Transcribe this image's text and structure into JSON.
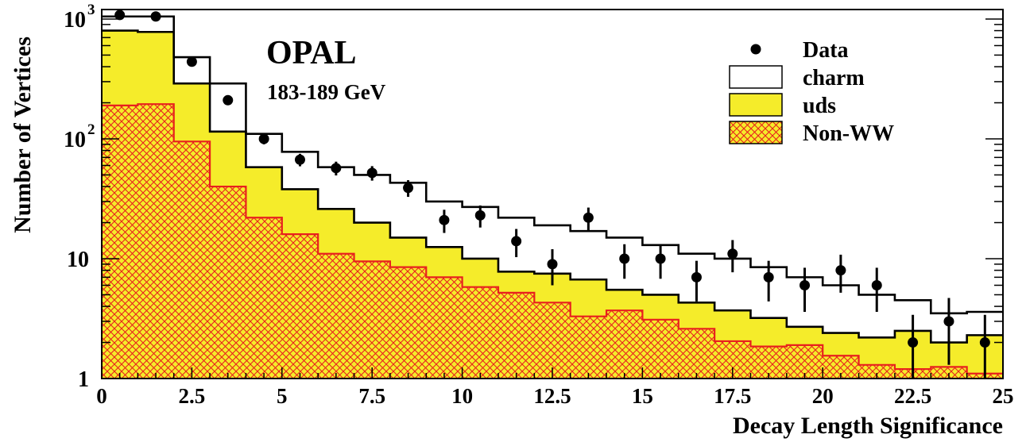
{
  "chart_data": {
    "type": "histogram",
    "title": "OPAL",
    "subtitle": "183-189 GeV",
    "xlabel": "Decay Length Significance",
    "ylabel": "Number of Vertices",
    "xlim": [
      0,
      25
    ],
    "ylim": [
      1,
      1200
    ],
    "yscale": "log",
    "bin_width": 1,
    "x_ticks": [
      {
        "value": 0,
        "label": "0"
      },
      {
        "value": 2.5,
        "label": "2.5"
      },
      {
        "value": 5,
        "label": "5"
      },
      {
        "value": 7.5,
        "label": "7.5"
      },
      {
        "value": 10,
        "label": "10"
      },
      {
        "value": 12.5,
        "label": "12.5"
      },
      {
        "value": 15,
        "label": "15"
      },
      {
        "value": 17.5,
        "label": "17.5"
      },
      {
        "value": 20,
        "label": "20"
      },
      {
        "value": 22.5,
        "label": "22.5"
      },
      {
        "value": 25,
        "label": "25"
      }
    ],
    "y_ticks": [
      {
        "value": 1,
        "base": "1",
        "exp": ""
      },
      {
        "value": 10,
        "base": "10",
        "exp": ""
      },
      {
        "value": 100,
        "base": "10",
        "exp": "2"
      },
      {
        "value": 1000,
        "base": "10",
        "exp": "3"
      }
    ],
    "legend_position": "top-right",
    "legend": [
      {
        "label": "Data",
        "style": "marker"
      },
      {
        "label": "charm",
        "style": "open-box"
      },
      {
        "label": "uds",
        "style": "yellow-fill"
      },
      {
        "label": "Non-WW",
        "style": "hatched"
      }
    ],
    "bins_x": [
      0,
      1,
      2,
      3,
      4,
      5,
      6,
      7,
      8,
      9,
      10,
      11,
      12,
      13,
      14,
      15,
      16,
      17,
      18,
      19,
      20,
      21,
      22,
      23,
      24,
      25
    ],
    "series": [
      {
        "name": "charm",
        "color": "#000000",
        "values": [
          1050,
          1050,
          480,
          290,
          110,
          78,
          58,
          50,
          43,
          30,
          27,
          22,
          19,
          17,
          15,
          13,
          11,
          10,
          8.5,
          7,
          6,
          5,
          4.5,
          3.5,
          3.6
        ]
      },
      {
        "name": "uds",
        "color": "#f5ec2a",
        "values": [
          800,
          780,
          290,
          115,
          58,
          38,
          26,
          20,
          15,
          12.5,
          10,
          7.8,
          7.5,
          6.7,
          5.5,
          5,
          4.3,
          3.7,
          3.2,
          2.7,
          2.4,
          2.2,
          2.5,
          2,
          2.3
        ]
      },
      {
        "name": "Non-WW",
        "color": "#e8201e",
        "values": [
          190,
          195,
          95,
          40,
          22,
          16,
          11,
          9.5,
          8.5,
          7,
          5.8,
          5.2,
          4.3,
          3.3,
          3.7,
          3.1,
          2.6,
          2.05,
          1.85,
          1.9,
          1.55,
          1.3,
          1.2,
          1.25,
          1.1
        ]
      },
      {
        "name": "Data",
        "color": "#000000",
        "points": [
          {
            "x": 0.5,
            "y": 1080,
            "err": 33
          },
          {
            "x": 1.5,
            "y": 1050,
            "err": 32
          },
          {
            "x": 2.5,
            "y": 440,
            "err": 21
          },
          {
            "x": 3.5,
            "y": 210,
            "err": 14
          },
          {
            "x": 4.5,
            "y": 100,
            "err": 10
          },
          {
            "x": 5.5,
            "y": 67,
            "err": 8
          },
          {
            "x": 6.5,
            "y": 57,
            "err": 7.5
          },
          {
            "x": 7.5,
            "y": 52,
            "err": 7.2
          },
          {
            "x": 8.5,
            "y": 39,
            "err": 6.2
          },
          {
            "x": 9.5,
            "y": 21,
            "err": 4.6
          },
          {
            "x": 10.5,
            "y": 23,
            "err": 4.8
          },
          {
            "x": 11.5,
            "y": 14,
            "err": 3.7
          },
          {
            "x": 12.5,
            "y": 9,
            "err": 3
          },
          {
            "x": 13.5,
            "y": 22,
            "err": 4.7
          },
          {
            "x": 14.5,
            "y": 10,
            "err": 3.2
          },
          {
            "x": 15.5,
            "y": 10,
            "err": 3.2
          },
          {
            "x": 16.5,
            "y": 7,
            "err": 2.6
          },
          {
            "x": 17.5,
            "y": 11,
            "err": 3.3
          },
          {
            "x": 18.5,
            "y": 7,
            "err": 2.6
          },
          {
            "x": 19.5,
            "y": 6,
            "err": 2.4
          },
          {
            "x": 20.5,
            "y": 8,
            "err": 2.8
          },
          {
            "x": 21.5,
            "y": 6,
            "err": 2.4
          },
          {
            "x": 22.5,
            "y": 2,
            "err": 1.4
          },
          {
            "x": 23.5,
            "y": 3,
            "err": 1.7
          },
          {
            "x": 24.5,
            "y": 2,
            "err": 1.4
          }
        ]
      }
    ]
  }
}
